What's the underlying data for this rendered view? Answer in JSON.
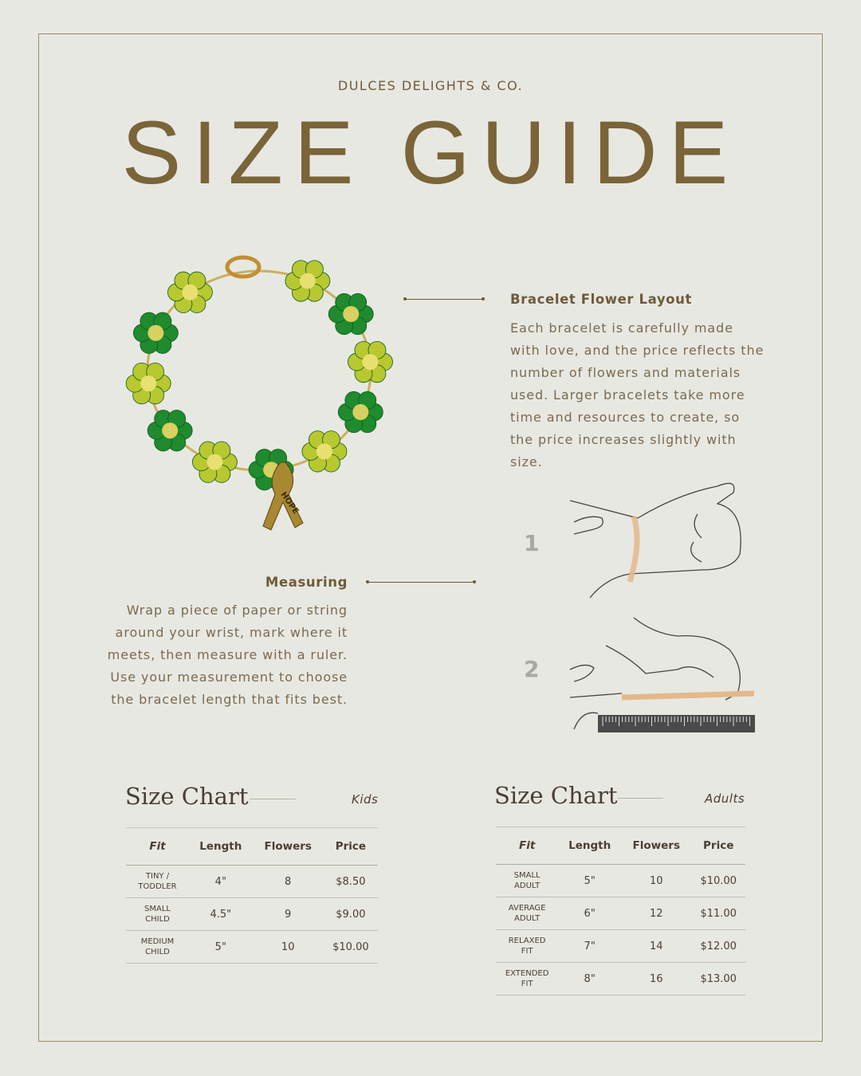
{
  "brand": "DULCES DELIGHTS & CO.",
  "title": "SIZE GUIDE",
  "layout_section": {
    "heading": "Bracelet Flower Layout",
    "lines": [
      "Each bracelet is carefully made",
      "with love, and the price reflects the",
      "number of flowers and materials",
      "used. Larger bracelets take more",
      "time and resources to create, so",
      "the price increases slightly with",
      "size."
    ]
  },
  "measuring_section": {
    "heading": "Measuring",
    "lines": [
      "Wrap a piece of paper or string",
      "around your wrist, mark where it",
      "meets, then measure with a ruler.",
      "Use your measurement to choose",
      "the bracelet length that fits best."
    ]
  },
  "steps": [
    "1",
    "2"
  ],
  "charm_text": "HOPE",
  "colors": {
    "accent": "#7a6438",
    "text": "#6e5a3a",
    "flower_dark": "#1f8a2e",
    "flower_light": "#b8c830",
    "background": "#e8e8e2"
  },
  "kids_chart": {
    "title": "Size Chart",
    "subtitle": "Kids",
    "headers": [
      "Fit",
      "Length",
      "Flowers",
      "Price"
    ],
    "rows": [
      [
        "TINY /\nTODDLER",
        "4\"",
        "8",
        "$8.50"
      ],
      [
        "SMALL\nCHILD",
        "4.5\"",
        "9",
        "$9.00"
      ],
      [
        "MEDIUM\nCHILD",
        "5\"",
        "10",
        "$10.00"
      ]
    ]
  },
  "adults_chart": {
    "title": "Size Chart",
    "subtitle": "Adults",
    "headers": [
      "Fit",
      "Length",
      "Flowers",
      "Price"
    ],
    "rows": [
      [
        "SMALL\nADULT",
        "5\"",
        "10",
        "$10.00"
      ],
      [
        "AVERAGE\nADULT",
        "6\"",
        "12",
        "$11.00"
      ],
      [
        "RELAXED\nFIT",
        "7\"",
        "14",
        "$12.00"
      ],
      [
        "EXTENDED\nFIT",
        "8\"",
        "16",
        "$13.00"
      ]
    ]
  }
}
